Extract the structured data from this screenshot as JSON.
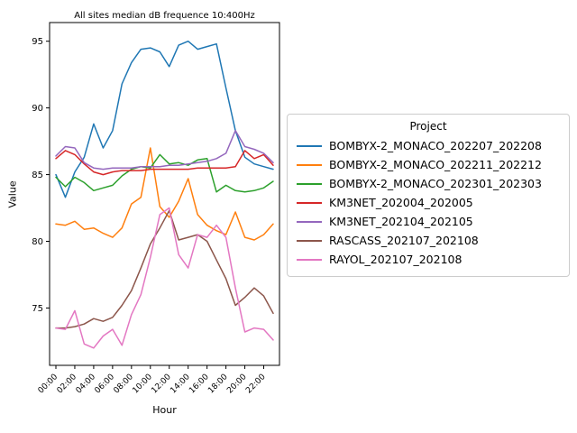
{
  "chart_data": {
    "type": "line",
    "title": "All sites median dB frequence 10:400Hz",
    "xlabel": "Hour",
    "ylabel": "Value",
    "legend_title": "Project",
    "legend_position": "outside-right-center",
    "grid": false,
    "ylim": [
      70.7,
      96.4
    ],
    "y_ticks": [
      75,
      80,
      85,
      90,
      95
    ],
    "x": [
      "00:00",
      "01:00",
      "02:00",
      "03:00",
      "04:00",
      "05:00",
      "06:00",
      "07:00",
      "08:00",
      "09:00",
      "10:00",
      "11:00",
      "12:00",
      "13:00",
      "14:00",
      "15:00",
      "16:00",
      "17:00",
      "18:00",
      "19:00",
      "20:00",
      "21:00",
      "22:00",
      "23:00"
    ],
    "x_tick_labels": [
      "00:00",
      "02:00",
      "04:00",
      "06:00",
      "08:00",
      "10:00",
      "12:00",
      "14:00",
      "16:00",
      "18:00",
      "20:00",
      "22:00"
    ],
    "x_tick_rotation_deg": 45,
    "series": [
      {
        "name": "BOMBYX-2_MONACO_202207_202208",
        "color": "#1f77b4",
        "values": [
          85.0,
          83.3,
          85.2,
          86.3,
          88.8,
          87.0,
          88.3,
          91.8,
          93.4,
          94.4,
          94.5,
          94.2,
          93.1,
          94.7,
          95.0,
          94.4,
          94.6,
          94.8,
          91.5,
          88.3,
          86.3,
          85.8,
          85.6,
          85.4
        ]
      },
      {
        "name": "BOMBYX-2_MONACO_202211_202212",
        "color": "#ff7f0e",
        "values": [
          81.3,
          81.2,
          81.5,
          80.9,
          81.0,
          80.6,
          80.3,
          81.0,
          82.8,
          83.3,
          87.0,
          82.6,
          81.8,
          83.0,
          84.7,
          82.0,
          81.2,
          80.8,
          80.5,
          82.2,
          80.3,
          80.1,
          80.5,
          81.3
        ]
      },
      {
        "name": "BOMBYX-2_MONACO_202301_202303",
        "color": "#2ca02c",
        "values": [
          84.8,
          84.1,
          84.8,
          84.4,
          83.8,
          84.0,
          84.2,
          84.9,
          85.4,
          85.6,
          85.5,
          86.5,
          85.8,
          85.9,
          85.7,
          86.1,
          86.2,
          83.7,
          84.2,
          83.8,
          83.7,
          83.8,
          84.0,
          84.5
        ]
      },
      {
        "name": "KM3NET_202004_202005",
        "color": "#d62728",
        "values": [
          86.2,
          86.8,
          86.5,
          85.8,
          85.2,
          85.0,
          85.2,
          85.3,
          85.3,
          85.3,
          85.4,
          85.4,
          85.4,
          85.4,
          85.4,
          85.5,
          85.5,
          85.5,
          85.5,
          85.6,
          86.8,
          86.2,
          86.5,
          85.7
        ]
      },
      {
        "name": "KM3NET_202104_202105",
        "color": "#9467bd",
        "values": [
          86.4,
          87.1,
          87.0,
          85.9,
          85.5,
          85.4,
          85.5,
          85.5,
          85.5,
          85.6,
          85.6,
          85.6,
          85.7,
          85.7,
          85.8,
          85.9,
          86.0,
          86.2,
          86.6,
          88.3,
          87.1,
          86.9,
          86.6,
          85.9
        ]
      },
      {
        "name": "RASCASS_202107_202108",
        "color": "#8c564b",
        "values": [
          73.5,
          73.5,
          73.6,
          73.8,
          74.2,
          74.0,
          74.3,
          75.2,
          76.3,
          78.0,
          79.8,
          81.0,
          82.3,
          80.1,
          80.3,
          80.5,
          80.0,
          78.6,
          77.2,
          75.2,
          75.8,
          76.5,
          75.9,
          74.6
        ]
      },
      {
        "name": "RAYOL_202107_202108",
        "color": "#e377c2",
        "values": [
          73.5,
          73.4,
          74.8,
          72.3,
          72.0,
          72.9,
          73.4,
          72.2,
          74.5,
          76.0,
          78.8,
          82.0,
          82.5,
          79.0,
          78.0,
          80.5,
          80.3,
          81.2,
          80.3,
          76.5,
          73.2,
          73.5,
          73.4,
          72.6
        ]
      }
    ]
  }
}
